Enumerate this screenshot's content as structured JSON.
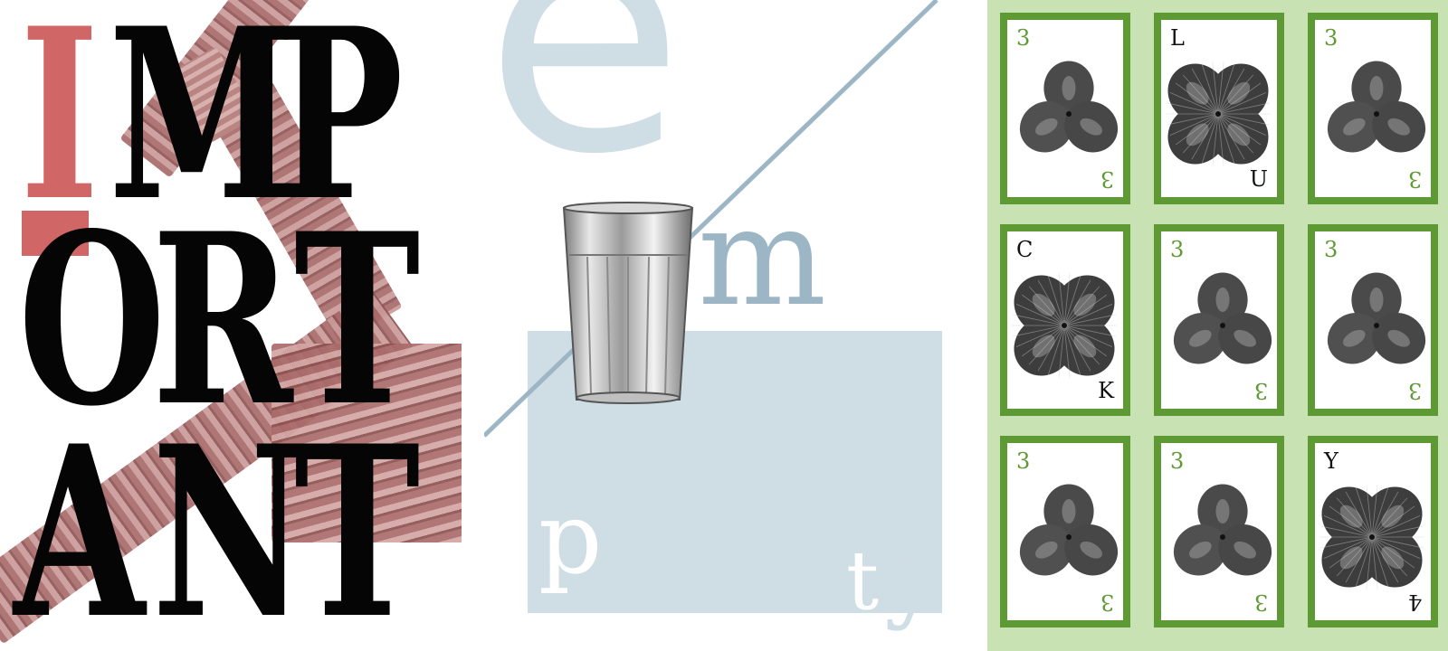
{
  "important_poster": {
    "letters": [
      "I",
      "M",
      "P",
      "O",
      "R",
      "T",
      "A",
      "N",
      "T"
    ],
    "colors": {
      "accent": "#d06666",
      "text": "#050505",
      "column": "#b07a78"
    }
  },
  "empty_poster": {
    "letters": {
      "e": "e",
      "m": "m",
      "p": "p",
      "t": "t",
      "y": "y"
    },
    "colors": {
      "accent": "#cfdde5",
      "line": "#9db6c6"
    }
  },
  "cards_panel": {
    "colors": {
      "background": "#c9e2b4",
      "border": "#5e9a33"
    },
    "cards": [
      {
        "corner_top": "3",
        "corner_bottom": "3",
        "leaves": 3,
        "kind": "num"
      },
      {
        "corner_top": "L",
        "corner_bottom": "U",
        "leaves": 4,
        "kind": "ltr"
      },
      {
        "corner_top": "3",
        "corner_bottom": "3",
        "leaves": 3,
        "kind": "num"
      },
      {
        "corner_top": "C",
        "corner_bottom": "K",
        "leaves": 4,
        "kind": "ltr"
      },
      {
        "corner_top": "3",
        "corner_bottom": "3",
        "leaves": 3,
        "kind": "num"
      },
      {
        "corner_top": "3",
        "corner_bottom": "3",
        "leaves": 3,
        "kind": "num"
      },
      {
        "corner_top": "3",
        "corner_bottom": "3",
        "leaves": 3,
        "kind": "num"
      },
      {
        "corner_top": "3",
        "corner_bottom": "3",
        "leaves": 3,
        "kind": "num"
      },
      {
        "corner_top": "Y",
        "corner_bottom": "4",
        "leaves": 4,
        "kind": "mixed"
      }
    ]
  }
}
